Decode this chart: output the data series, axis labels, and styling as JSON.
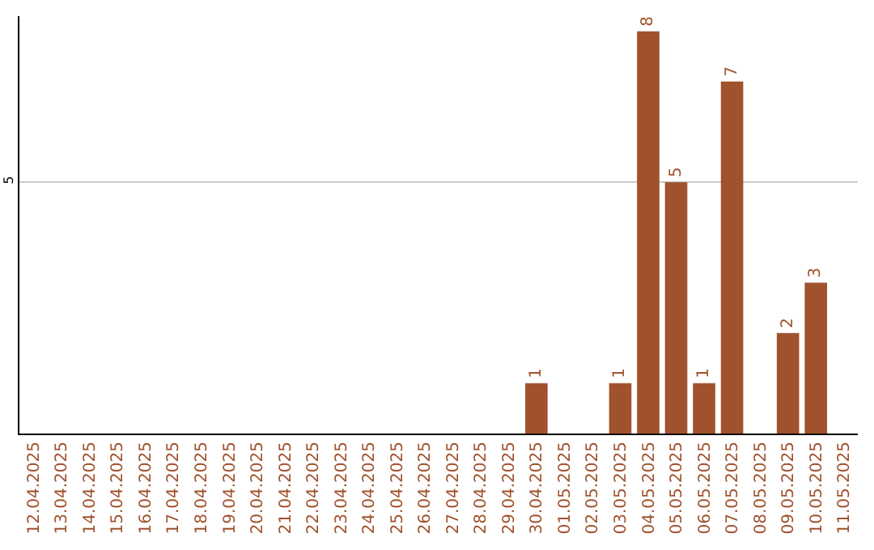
{
  "chart_data": {
    "type": "bar",
    "categories": [
      "12.04.2025",
      "13.04.2025",
      "14.04.2025",
      "15.04.2025",
      "16.04.2025",
      "17.04.2025",
      "18.04.2025",
      "19.04.2025",
      "20.04.2025",
      "21.04.2025",
      "22.04.2025",
      "23.04.2025",
      "24.04.2025",
      "25.04.2025",
      "26.04.2025",
      "27.04.2025",
      "28.04.2025",
      "29.04.2025",
      "30.04.2025",
      "01.05.2025",
      "02.05.2025",
      "03.05.2025",
      "04.05.2025",
      "05.05.2025",
      "06.05.2025",
      "07.05.2025",
      "08.05.2025",
      "09.05.2025",
      "10.05.2025",
      "11.05.2025"
    ],
    "values": [
      null,
      null,
      null,
      null,
      null,
      null,
      null,
      null,
      null,
      null,
      null,
      null,
      null,
      null,
      null,
      null,
      null,
      null,
      1,
      null,
      null,
      1,
      8,
      5,
      1,
      7,
      null,
      2,
      3,
      null
    ],
    "color": "#a0522d",
    "ylim": [
      0,
      8.3
    ],
    "yticks": [
      5
    ],
    "grid": "y",
    "data_labels": true
  }
}
